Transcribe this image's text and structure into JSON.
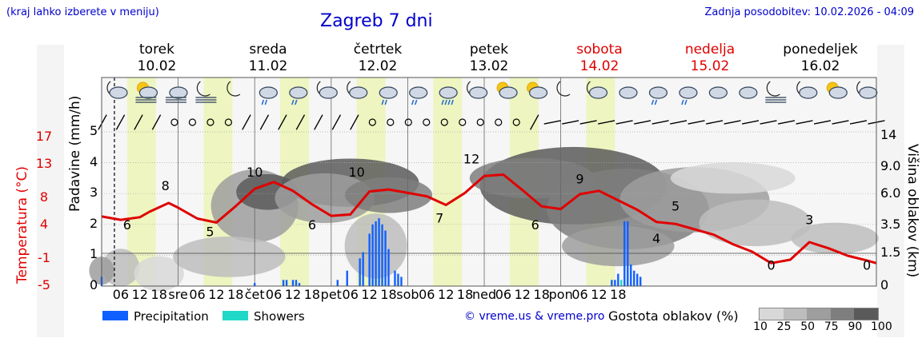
{
  "header": {
    "hint": "(kraj lahko izberete v meniju)",
    "title": "Zagreb 7 dni",
    "updated": "Zadnja posodobitev: 10.02.2026 - 04:09"
  },
  "days": [
    {
      "name": "torek",
      "date": "10.02",
      "weekend": false
    },
    {
      "name": "sreda",
      "date": "11.02",
      "weekend": false
    },
    {
      "name": "četrtek",
      "date": "12.02",
      "weekend": false
    },
    {
      "name": "petek",
      "date": "13.02",
      "weekend": false
    },
    {
      "name": "sobota",
      "date": "14.02",
      "weekend": true
    },
    {
      "name": "nedelja",
      "date": "15.02",
      "weekend": true
    },
    {
      "name": "ponedeljek",
      "date": "16.02",
      "weekend": true
    }
  ],
  "axis_labels": {
    "left_precip": "Padavine (mm/h)",
    "left_temp": "Temperatura (°C)",
    "right": "Višina oblakov (km)"
  },
  "x_ticks": [
    "06",
    "12",
    "18",
    "sre",
    "06",
    "12",
    "18",
    "čet",
    "06",
    "12",
    "18",
    "pet",
    "06",
    "12",
    "18",
    "sob",
    "06",
    "12",
    "18",
    "ned",
    "06",
    "12",
    "18",
    "pon",
    "06",
    "12",
    "18"
  ],
  "precip_ticks": [
    "0",
    "1",
    "2",
    "3",
    "4",
    "5"
  ],
  "temp_ticks": [
    "-5",
    "-1",
    "4",
    "8",
    "13",
    "17"
  ],
  "height_ticks": [
    "0",
    "1.5",
    "3.5",
    "6.0",
    "9.0",
    "14"
  ],
  "legend": {
    "precipitation": "Precipitation",
    "showers": "Showers",
    "precip_color": "#1060ff",
    "showers_color": "#20d8c8"
  },
  "copyright": "© vreme.us & vreme.pro",
  "density": {
    "title": "Gostota oblakov (%)",
    "levels": [
      "10",
      "25",
      "50",
      "75",
      "90",
      "100"
    ],
    "colors": [
      "#d8d8d8",
      "#bdbdbd",
      "#9e9e9e",
      "#7e7e7e",
      "#5a5a5a"
    ]
  },
  "icons": [
    "moon-partly-cloudy-icon",
    "sun-fog-icon",
    "cloudy-fog-icon",
    "moon-fog-icon",
    "moon-icon",
    "cloudy-rain-icon",
    "cloudy-rain-icon",
    "moon-cloud-icon",
    "moon-cloud-icon",
    "cloudy-rain-icon",
    "cloudy-rain-icon",
    "cloudy-heavy-rain-icon",
    "moon-cloud-icon",
    "sun-partly-cloudy-icon",
    "sun-partly-cloudy-icon",
    "moon-icon",
    "moon-cloud-icon",
    "cloudy-icon",
    "cloudy-rain-icon",
    "cloudy-rain-icon",
    "cloudy-icon",
    "cloudy-icon",
    "moon-fog-icon",
    "moon-cloud-icon",
    "sun-partly-cloudy-icon",
    "moon-partly-cloudy-icon"
  ],
  "chart_data": {
    "type": "line",
    "title": "Zagreb 7 dni",
    "xlabel": "",
    "ylabel": "Padavine (mm/h)",
    "ylim": [
      0,
      5
    ],
    "x_unit": "hours since 10.02 00:00",
    "temperature": {
      "name": "Temperatura (°C)",
      "ylim": [
        -5,
        17
      ],
      "points": [
        [
          0,
          5.3
        ],
        [
          6,
          4.8
        ],
        [
          12,
          5.2
        ],
        [
          15,
          6.0
        ],
        [
          21,
          7.3
        ],
        [
          24,
          6.6
        ],
        [
          30,
          5.0
        ],
        [
          36,
          4.4
        ],
        [
          42,
          6.8
        ],
        [
          48,
          9.4
        ],
        [
          54,
          10.4
        ],
        [
          60,
          9.1
        ],
        [
          66,
          7.1
        ],
        [
          72,
          5.4
        ],
        [
          78,
          5.6
        ],
        [
          84,
          9.0
        ],
        [
          90,
          9.3
        ],
        [
          102,
          8.3
        ],
        [
          108,
          7.0
        ],
        [
          114,
          8.8
        ],
        [
          120,
          11.3
        ],
        [
          126,
          11.5
        ],
        [
          132,
          9.2
        ],
        [
          138,
          6.8
        ],
        [
          144,
          6.4
        ],
        [
          150,
          8.6
        ],
        [
          156,
          9.1
        ],
        [
          168,
          6.3
        ],
        [
          174,
          4.5
        ],
        [
          180,
          4.2
        ],
        [
          186,
          3.4
        ],
        [
          192,
          2.6
        ],
        [
          198,
          1.2
        ],
        [
          204,
          0.1
        ],
        [
          210,
          -1.6
        ],
        [
          216,
          -1.1
        ],
        [
          222,
          1.5
        ],
        [
          228,
          0.6
        ],
        [
          234,
          -0.5
        ],
        [
          240,
          -1.2
        ],
        [
          243,
          -1.6
        ]
      ],
      "labels": [
        [
          8,
          6
        ],
        [
          20,
          8
        ],
        [
          34,
          5
        ],
        [
          48,
          10
        ],
        [
          66,
          6
        ],
        [
          80,
          10
        ],
        [
          106,
          7
        ],
        [
          116,
          12
        ],
        [
          136,
          6
        ],
        [
          150,
          9
        ],
        [
          174,
          4
        ],
        [
          180,
          5
        ],
        [
          210,
          0
        ],
        [
          222,
          3
        ],
        [
          240,
          0
        ]
      ]
    },
    "precipitation": [
      [
        0,
        0.3
      ],
      [
        48,
        0.1
      ],
      [
        57,
        0.2
      ],
      [
        58,
        0.2
      ],
      [
        60,
        0.2
      ],
      [
        61,
        0.2
      ],
      [
        62,
        0.1
      ],
      [
        74,
        0.2
      ],
      [
        77,
        0.5
      ],
      [
        81,
        0.9
      ],
      [
        82,
        1.1
      ],
      [
        84,
        1.7
      ],
      [
        85,
        2.0
      ],
      [
        86,
        2.1
      ],
      [
        87,
        2.2
      ],
      [
        88,
        2.0
      ],
      [
        89,
        1.8
      ],
      [
        90,
        1.2
      ],
      [
        92,
        0.5
      ],
      [
        93,
        0.4
      ],
      [
        94,
        0.3
      ],
      [
        160,
        0.2
      ],
      [
        161,
        0.2
      ],
      [
        162,
        0.4
      ],
      [
        164,
        2.1
      ],
      [
        165,
        2.1
      ],
      [
        166,
        0.7
      ],
      [
        167,
        0.5
      ],
      [
        168,
        0.4
      ],
      [
        169,
        0.3
      ]
    ],
    "showers": [
      [
        163,
        0.2
      ]
    ],
    "cloud_height_km_ticks": [
      0,
      1.5,
      3.5,
      6.0,
      9.0,
      14
    ],
    "cloud_density_percent_levels": [
      10,
      25,
      50,
      75,
      90,
      100
    ]
  }
}
